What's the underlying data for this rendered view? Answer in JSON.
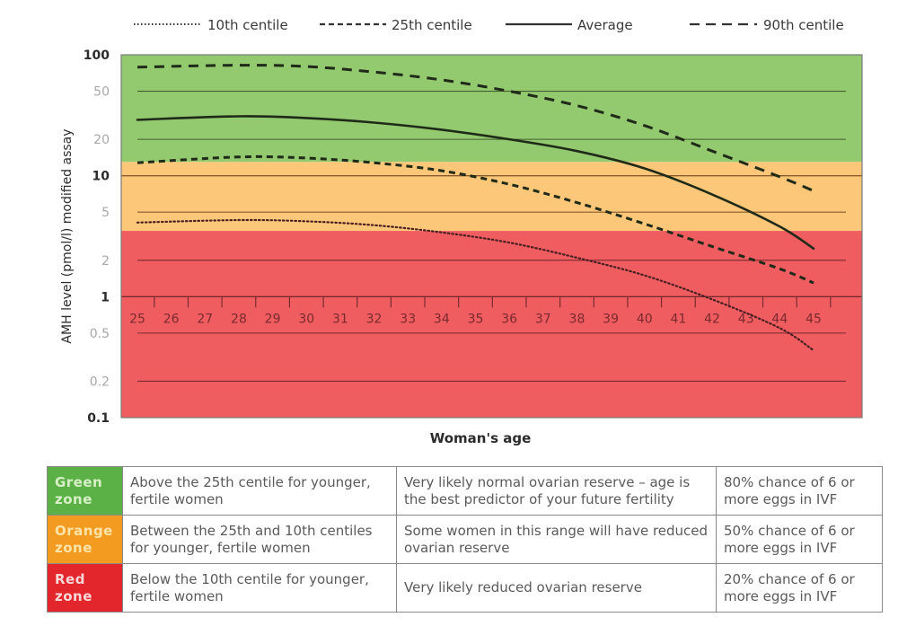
{
  "chart_data": {
    "type": "line",
    "title": "",
    "xlabel": "Woman's age",
    "ylabel": "AMH level (pmol/l) modified assay",
    "yscale": "log",
    "ylim": [
      0.1,
      100
    ],
    "xlim": [
      25,
      45
    ],
    "x_ticks": [
      25,
      26,
      27,
      28,
      29,
      30,
      31,
      32,
      33,
      34,
      35,
      36,
      37,
      38,
      39,
      40,
      41,
      42,
      43,
      44,
      45
    ],
    "y_ticks": [
      {
        "value": 100,
        "label": "100",
        "major": true
      },
      {
        "value": 50,
        "label": "50",
        "major": false
      },
      {
        "value": 20,
        "label": "20",
        "major": false
      },
      {
        "value": 10,
        "label": "10",
        "major": true
      },
      {
        "value": 5,
        "label": "5",
        "major": false
      },
      {
        "value": 2,
        "label": "2",
        "major": false
      },
      {
        "value": 1,
        "label": "1",
        "major": true
      },
      {
        "value": 0.5,
        "label": "0.5",
        "major": false
      },
      {
        "value": 0.2,
        "label": "0.2",
        "major": false
      },
      {
        "value": 0.1,
        "label": "0.1",
        "major": true
      }
    ],
    "grid": true,
    "legend_position": "top",
    "zones": [
      {
        "name": "Green zone",
        "from": 13,
        "to": 100,
        "color": "#93c96f"
      },
      {
        "name": "Orange zone",
        "from": 3.5,
        "to": 13,
        "color": "#fdc77a"
      },
      {
        "name": "Red zone",
        "from": 0.1,
        "to": 3.5,
        "color": "#ef5d60"
      }
    ],
    "series": [
      {
        "name": "10th centile",
        "style": "dotted",
        "x": [
          25,
          28,
          30,
          32,
          34,
          36,
          38,
          40,
          42,
          44,
          45
        ],
        "y": [
          4.1,
          4.3,
          4.2,
          3.9,
          3.4,
          2.8,
          2.1,
          1.5,
          0.95,
          0.55,
          0.36
        ]
      },
      {
        "name": "25th centile",
        "style": "short-dash",
        "x": [
          25,
          28,
          30,
          32,
          34,
          36,
          38,
          40,
          42,
          44,
          45
        ],
        "y": [
          12.8,
          14.3,
          14.0,
          12.8,
          11.0,
          8.5,
          6.0,
          4.0,
          2.6,
          1.7,
          1.3
        ]
      },
      {
        "name": "Average",
        "style": "solid",
        "x": [
          25,
          28,
          30,
          32,
          34,
          36,
          38,
          40,
          42,
          44,
          45
        ],
        "y": [
          29,
          31,
          30,
          27.5,
          24,
          20,
          16,
          11.5,
          7.0,
          3.8,
          2.5
        ]
      },
      {
        "name": "90th centile",
        "style": "long-dash",
        "x": [
          25,
          28,
          30,
          32,
          34,
          36,
          38,
          40,
          42,
          44,
          45
        ],
        "y": [
          79,
          82,
          80,
          72,
          62,
          50,
          38,
          26,
          16,
          9.8,
          7.5
        ]
      }
    ]
  },
  "legend": [
    {
      "label": "10th centile"
    },
    {
      "label": "25th centile"
    },
    {
      "label": "Average"
    },
    {
      "label": "90th centile"
    }
  ],
  "table": {
    "rows": [
      {
        "zone": "Green zone",
        "zone_line1": "Green",
        "zone_line2": "zone",
        "color": "#5bb146",
        "text_color": "#d8f0c8",
        "range": "Above the 25th centile for younger, fertile women",
        "meaning": "Very likely normal ovarian reserve – age is the best predictor of your future fertility",
        "ivf": "80% chance of 6 or more eggs in IVF"
      },
      {
        "zone": "Orange zone",
        "zone_line1": "Orange",
        "zone_line2": "zone",
        "color": "#f39b21",
        "text_color": "#fde3a8",
        "range": "Between the 25th and 10th centiles for younger, fertile women",
        "meaning": "Some women in this range will have reduced ovarian reserve",
        "ivf": "50% chance of 6 or more eggs in IVF"
      },
      {
        "zone": "Red zone",
        "zone_line1": "Red",
        "zone_line2": "zone",
        "color": "#e2262b",
        "text_color": "#fbd7d7",
        "range": "Below the 10th centile for younger, fertile women",
        "meaning": "Very likely reduced ovarian reserve",
        "ivf": "20% chance of 6 or more eggs in IVF"
      }
    ]
  }
}
